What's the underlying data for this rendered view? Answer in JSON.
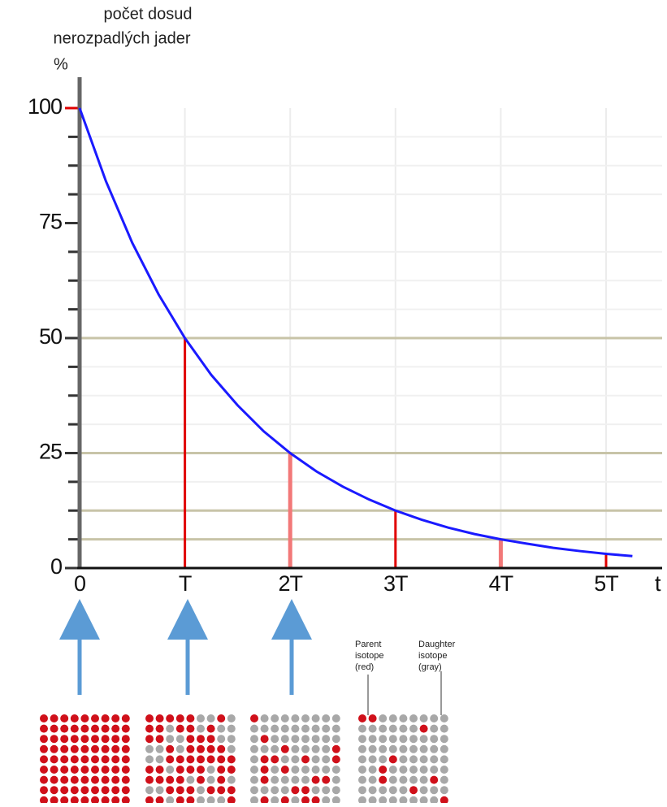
{
  "chart_data": {
    "type": "line",
    "y_label": [
      "počet dosud",
      "nerozpadlých jader"
    ],
    "y_unit": "%",
    "x_label": "t",
    "x": [
      0,
      0.25,
      0.5,
      0.75,
      1,
      1.25,
      1.5,
      1.75,
      2,
      2.25,
      2.5,
      2.75,
      3,
      3.25,
      3.5,
      3.75,
      4,
      4.25,
      4.5,
      4.75,
      5,
      5.25
    ],
    "series": [
      {
        "color": "#1a1aff",
        "values": [
          100,
          84.1,
          70.7,
          59.5,
          50,
          42.0,
          35.4,
          29.7,
          25,
          21.0,
          17.7,
          14.9,
          12.5,
          10.5,
          8.8,
          7.4,
          6.25,
          5.3,
          4.4,
          3.7,
          3.1,
          2.6
        ]
      }
    ],
    "drop_lines": {
      "x": [
        1,
        2,
        3,
        4,
        5
      ],
      "values": [
        50,
        25,
        12.5,
        6.25,
        3.125
      ],
      "colors": [
        "#e00000",
        "#f27878",
        "#e00000",
        "#f27878",
        "#e00000"
      ]
    },
    "reference_lines": [
      50,
      25,
      12.5,
      6.25
    ],
    "reference_color": "#c8c4a8",
    "xlim": [
      0,
      5.5
    ],
    "ylim": [
      0,
      100
    ],
    "xticks": [
      0,
      {
        "value": 1,
        "label": "T"
      },
      {
        "value": 2,
        "label": "2T"
      },
      {
        "value": 3,
        "label": "3T"
      },
      {
        "value": 4,
        "label": "4T"
      },
      {
        "value": 5,
        "label": "5T"
      }
    ],
    "yticks": [
      0,
      25,
      50,
      75,
      100
    ],
    "yminor_ticks": [
      6.25,
      12.5,
      18.75,
      31.25,
      37.5,
      43.75,
      56.25,
      62.5,
      68.75,
      81.25,
      87.5,
      93.75
    ],
    "grid": true,
    "annotations": [
      {
        "lines": [
          "Parent",
          "isotope",
          "(red)"
        ]
      },
      {
        "lines": [
          "Daughter",
          "isotope",
          "(gray)"
        ]
      }
    ]
  }
}
